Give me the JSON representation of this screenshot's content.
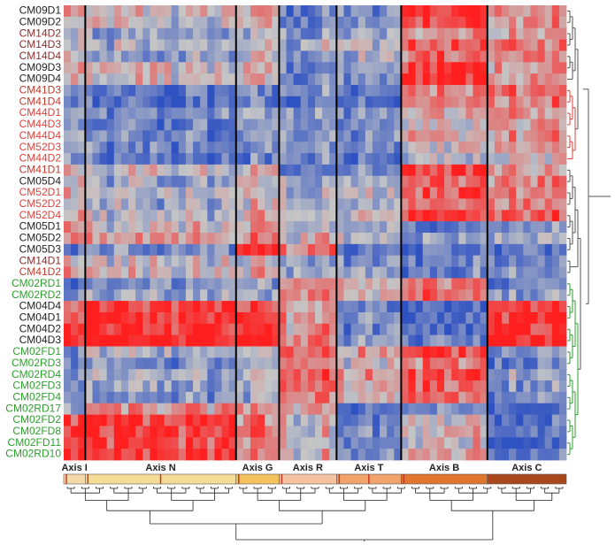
{
  "chart_data": {
    "type": "heatmap",
    "rows": [
      {
        "label": "CM09D1",
        "color": "#222222"
      },
      {
        "label": "CM09D2",
        "color": "#222222"
      },
      {
        "label": "CM14D2",
        "color": "#8b2a2a"
      },
      {
        "label": "CM14D3",
        "color": "#8b2a2a"
      },
      {
        "label": "CM14D4",
        "color": "#8b2a2a"
      },
      {
        "label": "CM09D3",
        "color": "#222222"
      },
      {
        "label": "CM09D4",
        "color": "#222222"
      },
      {
        "label": "CM41D3",
        "color": "#c0392b"
      },
      {
        "label": "CM41D4",
        "color": "#c0392b"
      },
      {
        "label": "CM44D1",
        "color": "#e0413a"
      },
      {
        "label": "CM44D3",
        "color": "#e0413a"
      },
      {
        "label": "CM44D4",
        "color": "#e0413a"
      },
      {
        "label": "CM52D3",
        "color": "#e0413a"
      },
      {
        "label": "CM44D2",
        "color": "#e0413a"
      },
      {
        "label": "CM41D1",
        "color": "#c0392b"
      },
      {
        "label": "CM05D4",
        "color": "#222222"
      },
      {
        "label": "CM52D1",
        "color": "#e0413a"
      },
      {
        "label": "CM52D2",
        "color": "#e0413a"
      },
      {
        "label": "CM52D4",
        "color": "#e0413a"
      },
      {
        "label": "CM05D1",
        "color": "#222222"
      },
      {
        "label": "CM05D2",
        "color": "#222222"
      },
      {
        "label": "CM05D3",
        "color": "#222222"
      },
      {
        "label": "CM14D1",
        "color": "#8b2a2a"
      },
      {
        "label": "CM41D2",
        "color": "#c0392b"
      },
      {
        "label": "CM02RD1",
        "color": "#2ca02c"
      },
      {
        "label": "CM02RD2",
        "color": "#2ca02c"
      },
      {
        "label": "CM04D4",
        "color": "#222222"
      },
      {
        "label": "CM04D1",
        "color": "#222222"
      },
      {
        "label": "CM04D2",
        "color": "#222222"
      },
      {
        "label": "CM04D3",
        "color": "#222222"
      },
      {
        "label": "CM02FD1",
        "color": "#2ca02c"
      },
      {
        "label": "CM02RD3",
        "color": "#2ca02c"
      },
      {
        "label": "CM02RD4",
        "color": "#2ca02c"
      },
      {
        "label": "CM02FD3",
        "color": "#2ca02c"
      },
      {
        "label": "CM02FD4",
        "color": "#2ca02c"
      },
      {
        "label": "CM02RD17",
        "color": "#2ca02c"
      },
      {
        "label": "CM02FD2",
        "color": "#2ca02c"
      },
      {
        "label": "CM02FD8",
        "color": "#2ca02c"
      },
      {
        "label": "CM02FD11",
        "color": "#2ca02c"
      },
      {
        "label": "CM02RD10",
        "color": "#2ca02c"
      }
    ],
    "column_groups": [
      {
        "label": "Axis I",
        "n": 3,
        "color": "#f5d9a8"
      },
      {
        "label": "Axis N",
        "n": 21,
        "color": "#f7dc97"
      },
      {
        "label": "Axis G",
        "n": 6,
        "color": "#f4c25f"
      },
      {
        "label": "Axis R",
        "n": 8,
        "color": "#f6c3a0"
      },
      {
        "label": "Axis T",
        "n": 9,
        "color": "#f1a36c"
      },
      {
        "label": "Axis B",
        "n": 12,
        "color": "#e1762f"
      },
      {
        "label": "Axis C",
        "n": 11,
        "color": "#a9481c"
      }
    ],
    "group_patterns": [
      [
        0.2,
        0.0,
        0.2,
        -0.6,
        -0.5,
        0.9,
        0.4
      ],
      [
        0.0,
        -0.3,
        0.0,
        -0.3,
        -0.2,
        0.6,
        0.5
      ],
      [
        -0.5,
        -0.8,
        -0.7,
        -0.6,
        -0.8,
        0.3,
        0.6
      ],
      [
        -0.3,
        -0.6,
        -0.4,
        -0.4,
        -0.6,
        0.1,
        0.3
      ],
      [
        0.3,
        0.1,
        0.2,
        -0.1,
        -0.3,
        -0.5,
        -0.3
      ],
      [
        -0.7,
        -0.4,
        0.8,
        0.6,
        -0.7,
        -0.6,
        -0.5
      ],
      [
        -0.9,
        -0.6,
        -0.8,
        -0.9,
        -0.7,
        -0.4,
        0.0
      ],
      [
        -0.6,
        -0.4,
        -0.3,
        0.5,
        0.1,
        0.6,
        -0.4
      ],
      [
        0.7,
        0.9,
        0.9,
        0.3,
        -0.6,
        -0.8,
        0.9
      ],
      [
        -0.4,
        0.3,
        0.4,
        0.2,
        -0.7,
        -0.5,
        -0.8
      ],
      [
        0.9,
        0.9,
        0.5,
        0.1,
        -0.5,
        0.2,
        -0.6
      ]
    ],
    "group_members": [
      [
        0,
        1,
        5,
        6,
        14
      ],
      [
        2,
        3,
        4,
        15,
        16,
        17,
        18
      ],
      [
        7,
        8
      ],
      [
        9,
        10,
        11,
        12,
        13
      ],
      [
        19,
        20,
        22,
        23
      ],
      [
        21
      ],
      [],
      [
        24,
        25,
        30,
        31,
        32,
        33,
        34
      ],
      [
        26,
        27,
        28,
        29
      ],
      [
        35
      ],
      [
        36,
        37,
        38,
        39
      ]
    ],
    "value_range": [
      -1,
      1
    ],
    "colormap": {
      "low": "#2f52c2",
      "mid": "#c6c6c6",
      "high": "#ff1f1f"
    },
    "row_dendrogram_branch_colors": [
      "#555555",
      "#e0413a",
      "#2ca02c"
    ],
    "col_dendrogram_color": "#222222"
  }
}
